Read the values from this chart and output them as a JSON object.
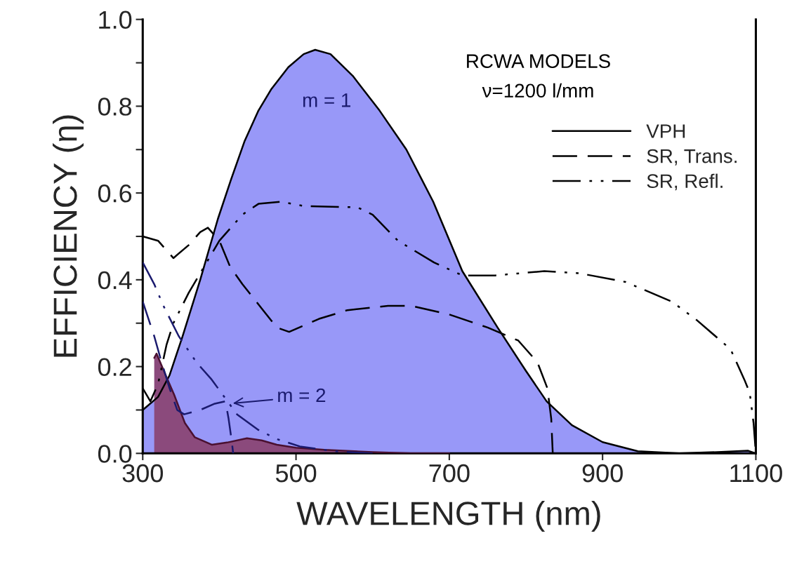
{
  "chart_data": {
    "type": "line",
    "xlabel": "WAVELENGTH (nm)",
    "ylabel": "EFFICIENCY (η)",
    "xlim": [
      300,
      1100
    ],
    "xticks": [
      300,
      500,
      700,
      900,
      1100
    ],
    "ylim": [
      0,
      1.0
    ],
    "yticks": [
      {
        "value": 0,
        "label": "0.0"
      },
      {
        "value": 0.1,
        "label": null
      },
      {
        "value": 0.2,
        "label": "0.2"
      },
      {
        "value": 0.3,
        "label": null
      },
      {
        "value": 0.4,
        "label": "0.4"
      },
      {
        "value": 0.5,
        "label": null
      },
      {
        "value": 0.6,
        "label": "0.6"
      },
      {
        "value": 0.7,
        "label": null
      },
      {
        "value": 0.8,
        "label": "0.8"
      },
      {
        "value": 0.9,
        "label": null
      },
      {
        "value": 1.0,
        "label": "1.0"
      }
    ],
    "grid": false,
    "legend": "right",
    "series": [
      {
        "name": "VPH",
        "type": "area",
        "color": "#9898f8",
        "line_style": "solid",
        "x": [
          300,
          320,
          335,
          352,
          375,
          398,
          415,
          433,
          451,
          468,
          490,
          510,
          525,
          545,
          574,
          609,
          644,
          679,
          717,
          763,
          800,
          827,
          860,
          900,
          946,
          1000,
          1050,
          1090,
          1100
        ],
        "values": [
          0.1,
          0.13,
          0.18,
          0.27,
          0.4,
          0.54,
          0.63,
          0.72,
          0.79,
          0.84,
          0.89,
          0.92,
          0.93,
          0.92,
          0.87,
          0.79,
          0.7,
          0.58,
          0.42,
          0.29,
          0.19,
          0.12,
          0.065,
          0.026,
          0.005,
          0.0,
          0.003,
          0.006,
          0.0
        ]
      },
      {
        "name": "SR, Trans.",
        "color": "#000000",
        "line_style": "dashed",
        "x": [
          300,
          320,
          340,
          360,
          375,
          385,
          400,
          414,
          430,
          457,
          475,
          491,
          530,
          567,
          620,
          650,
          700,
          750,
          790,
          815,
          828,
          833,
          835
        ],
        "values": [
          0.5,
          0.49,
          0.45,
          0.48,
          0.51,
          0.52,
          0.49,
          0.43,
          0.39,
          0.33,
          0.29,
          0.28,
          0.31,
          0.33,
          0.34,
          0.34,
          0.32,
          0.29,
          0.26,
          0.21,
          0.15,
          0.08,
          0.0
        ]
      },
      {
        "name": "SR, Refl.",
        "color": "#000000",
        "line_style": "dashdot",
        "x": [
          300,
          310,
          320,
          331,
          340,
          360,
          380,
          400,
          430,
          451,
          480,
          510,
          580,
          600,
          633,
          680,
          717,
          760,
          824,
          870,
          930,
          990,
          1021,
          1067,
          1085,
          1092,
          1097,
          1100
        ],
        "values": [
          0.15,
          0.12,
          0.16,
          0.25,
          0.3,
          0.37,
          0.43,
          0.49,
          0.55,
          0.575,
          0.58,
          0.57,
          0.567,
          0.55,
          0.49,
          0.44,
          0.41,
          0.41,
          0.42,
          0.415,
          0.395,
          0.35,
          0.31,
          0.24,
          0.17,
          0.14,
          0.07,
          0.0
        ]
      },
      {
        "type": "area",
        "color": "#8b4a7c",
        "line_style": "solid",
        "x": [
          315,
          318,
          330,
          341,
          355,
          368,
          390,
          410,
          436,
          455,
          475,
          500,
          537,
          600,
          650,
          700
        ],
        "values": [
          0.22,
          0.23,
          0.18,
          0.135,
          0.07,
          0.037,
          0.02,
          0.025,
          0.035,
          0.03,
          0.02,
          0.013,
          0.008,
          0.003,
          0.0,
          0.0
        ]
      },
      {
        "color": "#1a1a6e",
        "line_style": "dashed",
        "x": [
          300,
          315,
          323,
          335,
          345,
          354,
          375,
          393,
          408,
          412,
          416,
          418
        ],
        "values": [
          0.35,
          0.27,
          0.22,
          0.15,
          0.1,
          0.09,
          0.1,
          0.114,
          0.12,
          0.08,
          0.03,
          0.0
        ]
      },
      {
        "color": "#1a1a6e",
        "line_style": "dashdot",
        "x": [
          300,
          315,
          327,
          347,
          370,
          390,
          423,
          450,
          475,
          505,
          550,
          600
        ],
        "values": [
          0.44,
          0.39,
          0.34,
          0.27,
          0.21,
          0.17,
          0.09,
          0.055,
          0.033,
          0.016,
          0.005,
          0.0
        ]
      }
    ],
    "annotations": [
      "RCWA MODELS",
      "ν=1200 l/mm",
      "m = 1",
      {
        "text": "m = 2",
        "x": 415,
        "y": 0.115
      }
    ]
  }
}
